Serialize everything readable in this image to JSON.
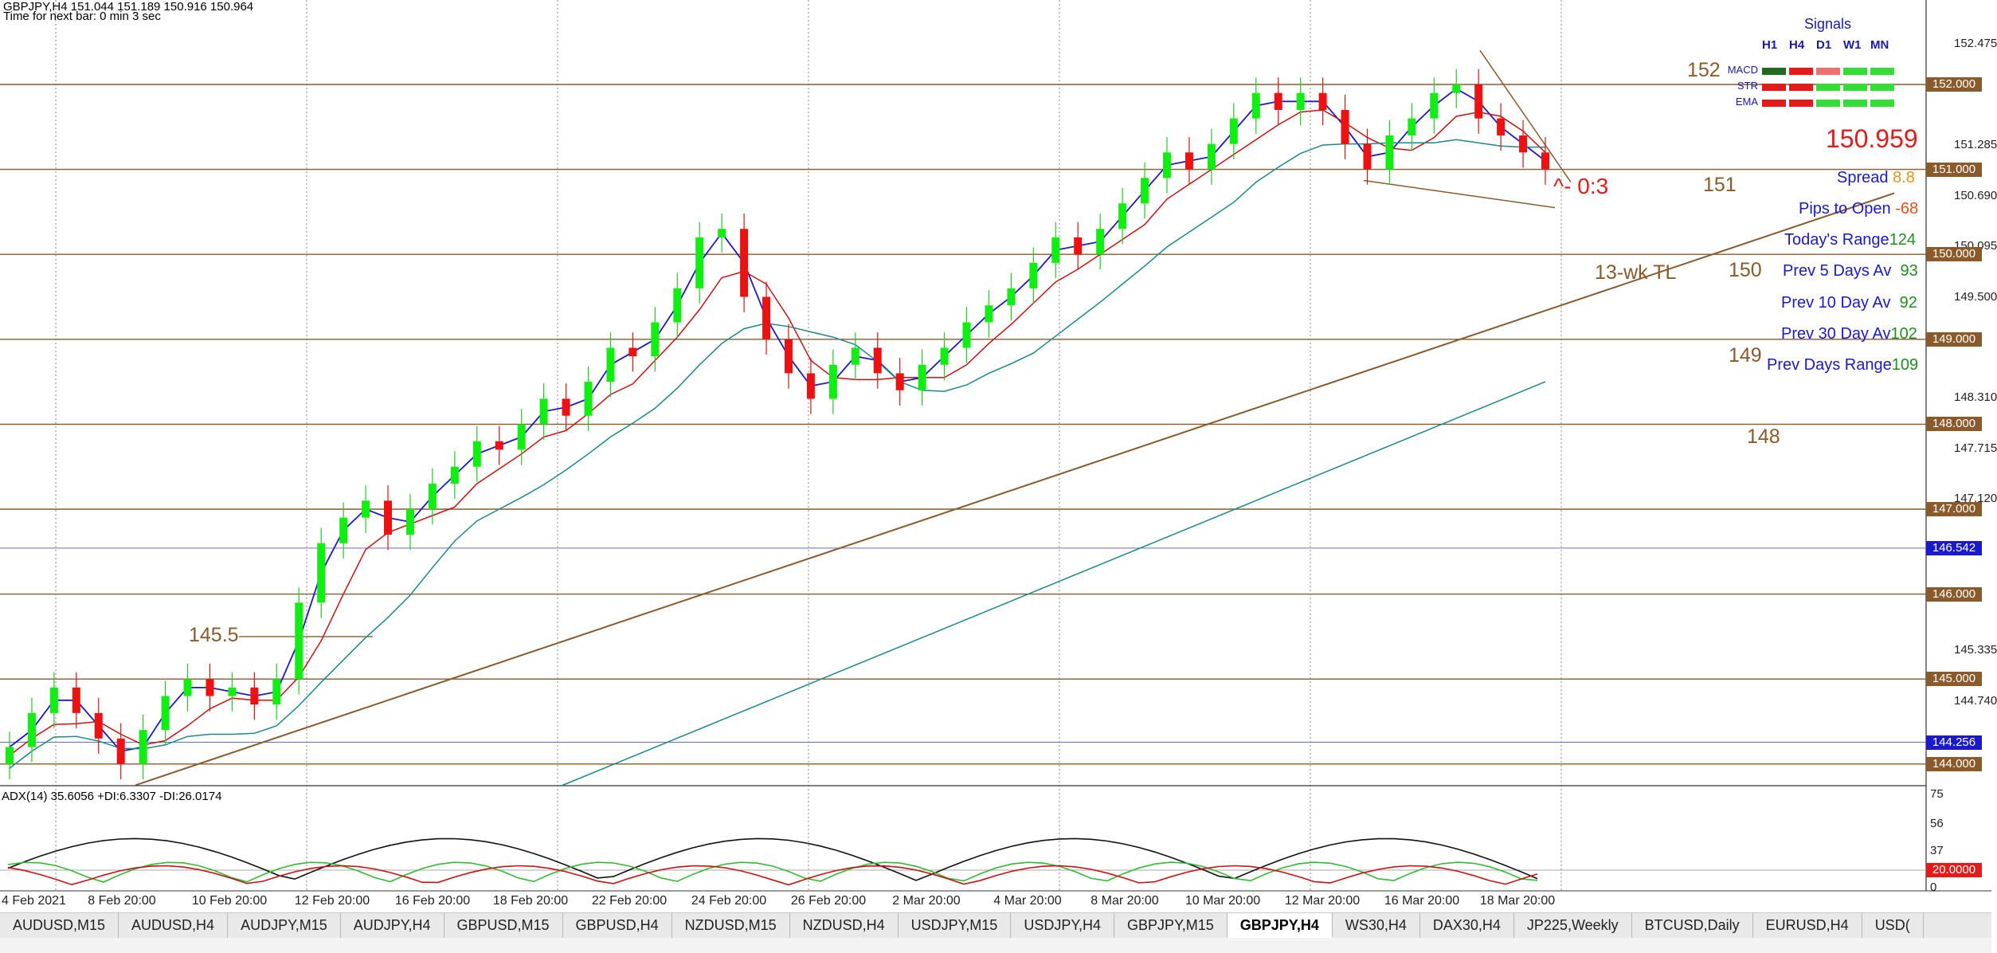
{
  "header": {
    "symbol_line": "GBPJPY,H4  151.044 151.189 150.916 150.964",
    "timer_line": "Time for next bar: 0 min 3 sec"
  },
  "price_scale": [
    "152.475",
    "151.285",
    "150.690",
    "150.095",
    "149.500",
    "148.310",
    "147.715",
    "147.120",
    "145.335",
    "144.740"
  ],
  "price_labels": [
    {
      "text": "152.000",
      "color": "#8B5A2B"
    },
    {
      "text": "151.000",
      "color": "#8B5A2B"
    },
    {
      "text": "150.000",
      "color": "#8B5A2B"
    },
    {
      "text": "149.000",
      "color": "#8B5A2B"
    },
    {
      "text": "148.000",
      "color": "#8B5A2B"
    },
    {
      "text": "147.000",
      "color": "#8B5A2B"
    },
    {
      "text": "146.542",
      "color": "#1a1acc"
    },
    {
      "text": "146.000",
      "color": "#8B5A2B"
    },
    {
      "text": "145.000",
      "color": "#8B5A2B"
    },
    {
      "text": "144.256",
      "color": "#1a1acc"
    },
    {
      "text": "144.000",
      "color": "#8B5A2B"
    }
  ],
  "level_annotations": [
    "152",
    "151",
    "150",
    "149",
    "148",
    "145.5"
  ],
  "trendline_label": "13-wk TL",
  "price_arrow_note": "^- 0:3",
  "signals": {
    "title": "Signals",
    "columns": [
      "H1",
      "H4",
      "D1",
      "W1",
      "MN"
    ],
    "rows": [
      {
        "name": "MACD",
        "colors": [
          "#1f6b1f",
          "#e8191b",
          "#f07070",
          "#33dd33",
          "#33dd33"
        ]
      },
      {
        "name": "STR",
        "colors": [
          "#e8191b",
          "#e8191b",
          "#33dd33",
          "#33dd33",
          "#33dd33"
        ]
      },
      {
        "name": "EMA",
        "colors": [
          "#e8191b",
          "#e8191b",
          "#33dd33",
          "#33dd33",
          "#33dd33"
        ]
      }
    ]
  },
  "stats": {
    "price": "150.959",
    "spread_label": "Spread",
    "spread_value": "8.8",
    "pips_label": "Pips to Open",
    "pips_value": "-68",
    "today_label": "Today's Range",
    "today_value": "124",
    "prev5_label": "Prev 5 Days Av",
    "prev5_value": "93",
    "prev10_label": "Prev 10 Day Av",
    "prev10_value": "92",
    "prev30_label": "Prev 30 Day Av",
    "prev30_value": "102",
    "prevdays_label": "Prev Days Range",
    "prevdays_value": "109"
  },
  "adx": {
    "label": "ADX(14) 35.6056 +DI:6.3307 -DI:26.0174",
    "scale": [
      "75",
      "56",
      "37",
      "0"
    ],
    "level_label": "20.0000"
  },
  "x_axis": [
    "4 Feb 2021",
    "8 Feb 20:00",
    "10 Feb 20:00",
    "12 Feb 20:00",
    "16 Feb 20:00",
    "18 Feb 20:00",
    "22 Feb 20:00",
    "24 Feb 20:00",
    "26 Feb 20:00",
    "2 Mar 20:00",
    "4 Mar 20:00",
    "8 Mar 20:00",
    "10 Mar 20:00",
    "12 Mar 20:00",
    "16 Mar 20:00",
    "18 Mar 20:00"
  ],
  "tabs": [
    "AUDUSD,M15",
    "AUDUSD,H4",
    "AUDJPY,M15",
    "AUDJPY,H4",
    "GBPUSD,M15",
    "GBPUSD,H4",
    "NZDUSD,M15",
    "NZDUSD,H4",
    "USDJPY,M15",
    "USDJPY,H4",
    "GBPJPY,M15",
    "GBPJPY,H4",
    "WS30,H4",
    "DAX30,H4",
    "JP225,Weekly",
    "BTCUSD,Daily",
    "EURUSD,H4",
    "USD("
  ],
  "active_tab": "GBPJPY,H4"
}
